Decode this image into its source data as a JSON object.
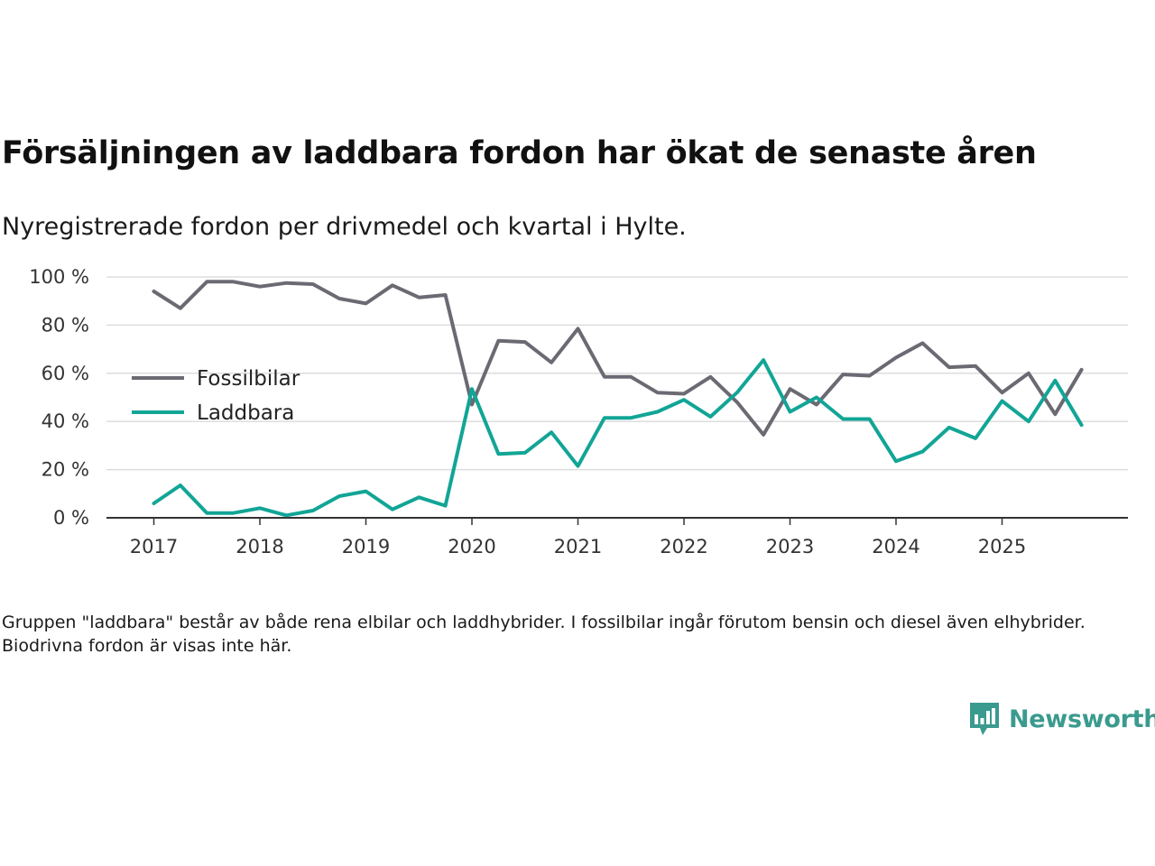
{
  "header": {
    "title": "Försäljningen av laddbara fordon har ökat de senaste åren",
    "subtitle": "Nyregistrerade fordon per drivmedel och kvartal i Hylte."
  },
  "footer": {
    "note": "Gruppen \"laddbara\" består av både rena elbilar och laddhybrider. I fossilbilar ingår förutom bensin och diesel även elhybrider. Biodrivna fordon är visas inte här.",
    "brand": "Newsworthy"
  },
  "colors": {
    "fossil": "#6b6a73",
    "laddbara": "#12a596",
    "grid": "#dddddd",
    "axis": "#333333",
    "brand": "#3a9a8e"
  },
  "chart_data": {
    "type": "line",
    "title": "Försäljningen av laddbara fordon har ökat de senaste åren",
    "subtitle": "Nyregistrerade fordon per drivmedel och kvartal i Hylte.",
    "xlabel": "",
    "ylabel": "",
    "ylim": [
      0,
      100
    ],
    "yticks": [
      0,
      20,
      40,
      60,
      80,
      100
    ],
    "ytick_labels": [
      "0 %",
      "20 %",
      "40 %",
      "60 %",
      "80 %",
      "100 %"
    ],
    "xticks": [
      2017,
      2018,
      2019,
      2020,
      2021,
      2022,
      2023,
      2024,
      2025
    ],
    "xtick_labels": [
      "2017",
      "2018",
      "2019",
      "2020",
      "2021",
      "2022",
      "2023",
      "2024",
      "2025"
    ],
    "grid": true,
    "legend_position": "left-middle",
    "x": [
      2017.0,
      2017.25,
      2017.5,
      2017.75,
      2018.0,
      2018.25,
      2018.5,
      2018.75,
      2019.0,
      2019.25,
      2019.5,
      2019.75,
      2020.0,
      2020.25,
      2020.5,
      2020.75,
      2021.0,
      2021.25,
      2021.5,
      2021.75,
      2022.0,
      2022.25,
      2022.5,
      2022.75,
      2023.0,
      2023.25,
      2023.5,
      2023.75,
      2024.0,
      2024.25,
      2024.5,
      2024.75,
      2025.0,
      2025.25,
      2025.5,
      2025.75
    ],
    "series": [
      {
        "name": "Fossilbilar",
        "key": "fossil",
        "values": [
          94,
          87,
          98,
          98,
          96,
          97.5,
          97,
          91,
          89,
          96.5,
          91.5,
          92.5,
          47,
          73.5,
          73,
          64.5,
          78.5,
          58.5,
          58.5,
          52,
          51.5,
          58.5,
          48,
          34.5,
          53.5,
          47,
          59.5,
          59,
          66.5,
          72.5,
          62.5,
          63,
          52,
          60,
          43,
          61.5
        ]
      },
      {
        "name": "Laddbara",
        "key": "laddbara",
        "values": [
          6,
          13.5,
          2,
          2,
          4,
          1,
          3,
          9,
          11,
          3.5,
          8.5,
          5,
          53.5,
          26.5,
          27,
          35.5,
          21.5,
          41.5,
          41.5,
          44,
          49,
          42,
          52,
          65.5,
          44,
          50,
          41,
          41,
          23.5,
          27.5,
          37.5,
          33,
          48.5,
          40,
          57,
          38.5
        ]
      }
    ]
  }
}
